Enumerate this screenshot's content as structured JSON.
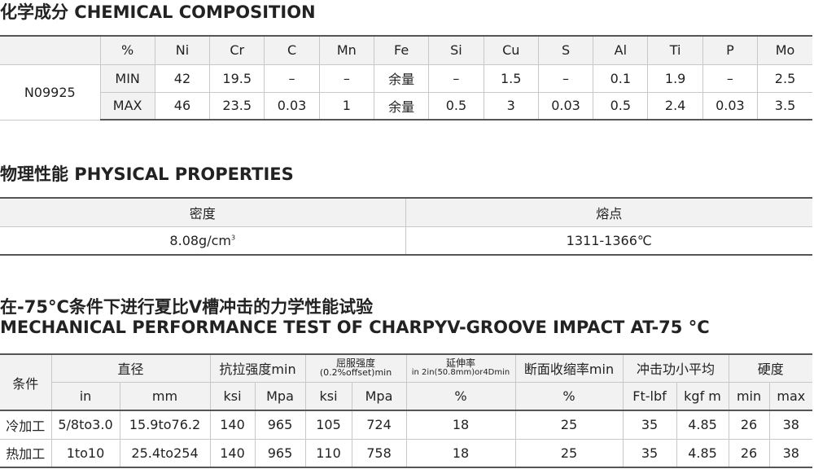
{
  "chem": {
    "title": "化学成分 CHEMICAL COMPOSITION",
    "headers": [
      "",
      "%",
      "Ni",
      "Cr",
      "C",
      "Mn",
      "Fe",
      "Si",
      "Cu",
      "S",
      "Al",
      "Ti",
      "P",
      "Mo"
    ],
    "grade": "N09925",
    "rows": [
      [
        "MIN",
        "42",
        "19.5",
        "–",
        "–",
        "余量",
        "–",
        "1.5",
        "–",
        "0.1",
        "1.9",
        "–",
        "2.5"
      ],
      [
        "MAX",
        "46",
        "23.5",
        "0.03",
        "1",
        "余量",
        "0.5",
        "3",
        "0.03",
        "0.5",
        "2.4",
        "0.03",
        "3.5"
      ]
    ]
  },
  "phys": {
    "title": "物理性能 PHYSICAL PROPERTIES",
    "headers": [
      "密度",
      "熔点"
    ],
    "density": "8.08g/cm",
    "density_sup": "3",
    "melting": "1311-1366℃"
  },
  "mech": {
    "title_cn": "在-75°C条件下进行夏比V槽冲击的力学性能试验",
    "title_en": "MECHANICAL PERFORMANCE TEST OF CHARPYV-GROOVE IMPACT AT-75 °C",
    "header1": {
      "condition": "条件",
      "diameter": "直径",
      "tensile": "抗拉强度min",
      "yield": "屈服强度",
      "yield_sub": "(0.2%offset)min",
      "elong": "延伸率",
      "elong_sub": "in 2in(50.8mm)or4Dmin",
      "reduction": "断面收缩率min",
      "impact": "冲击功小平均",
      "hardness": "硬度"
    },
    "header2": [
      "in",
      "mm",
      "ksi",
      "Mpa",
      "ksi",
      "Mpa",
      "%",
      "%",
      "Ft-lbf",
      "kgf m",
      "min",
      "max"
    ],
    "rows": [
      [
        "冷加工",
        "5/8to3.0",
        "15.9to76.2",
        "140",
        "965",
        "105",
        "724",
        "18",
        "25",
        "35",
        "4.85",
        "26",
        "38"
      ],
      [
        "热加工",
        "1to10",
        "25.4to254",
        "140",
        "965",
        "110",
        "758",
        "18",
        "25",
        "35",
        "4.85",
        "26",
        "38"
      ]
    ]
  }
}
